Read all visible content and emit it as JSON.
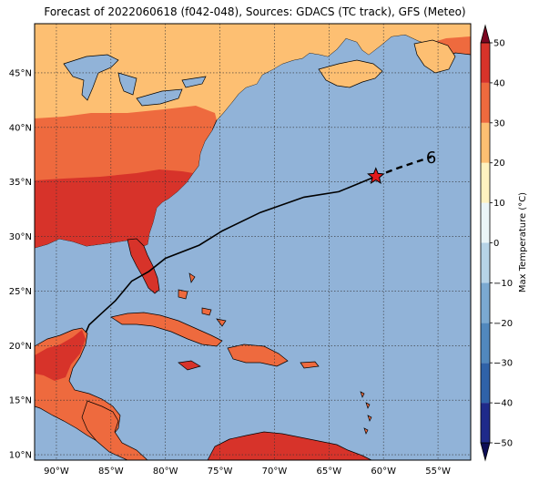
{
  "title": "Forecast of 2022060618 (f042-048), Sources: GDACS (TC track), GFS (Meteo)",
  "map": {
    "lon_range": [
      -92,
      -52
    ],
    "lat_range": [
      9.5,
      49.5
    ],
    "lon_ticks": [
      {
        "value": -90,
        "label": "90°W"
      },
      {
        "value": -85,
        "label": "85°W"
      },
      {
        "value": -80,
        "label": "80°W"
      },
      {
        "value": -75,
        "label": "75°W"
      },
      {
        "value": -70,
        "label": "70°W"
      },
      {
        "value": -65,
        "label": "65°W"
      },
      {
        "value": -60,
        "label": "60°W"
      },
      {
        "value": -55,
        "label": "55°W"
      }
    ],
    "lat_ticks": [
      {
        "value": 45,
        "label": "45°N"
      },
      {
        "value": 40,
        "label": "40°N"
      },
      {
        "value": 35,
        "label": "35°N"
      },
      {
        "value": 30,
        "label": "30°N"
      },
      {
        "value": 25,
        "label": "25°N"
      },
      {
        "value": 20,
        "label": "20°N"
      },
      {
        "value": 15,
        "label": "15°N"
      },
      {
        "value": 10,
        "label": "10°N"
      }
    ],
    "grid": true,
    "colors": {
      "ocean": "#91b3d8",
      "lt10": "#fef2c0",
      "10_20": "#fdbf72",
      "20_30": "#ee6a3e",
      "30_40": "#d7332a",
      "lakes": "#91b3d8"
    },
    "track_observed": [
      [
        -87.3,
        21.2
      ],
      [
        -87,
        21.9
      ],
      [
        -85.8,
        23.0
      ],
      [
        -84.6,
        24.1
      ],
      [
        -83.1,
        25.9
      ],
      [
        -81.5,
        26.8
      ],
      [
        -80.0,
        28.0
      ],
      [
        -76.9,
        29.2
      ],
      [
        -74.8,
        30.5
      ],
      [
        -71.3,
        32.2
      ],
      [
        -67.3,
        33.6
      ],
      [
        -64.1,
        34.1
      ],
      [
        -60.7,
        35.5
      ]
    ],
    "track_forecast": [
      [
        -60.7,
        35.5
      ],
      [
        -58.6,
        36.3
      ],
      [
        -55.6,
        37.3
      ]
    ],
    "storm_position": [
      -60.7,
      35.5
    ],
    "storm_forecast_symbol": "6"
  },
  "colorbar": {
    "label": "Max Temperature (°C)",
    "levels": [
      -50,
      -40,
      -30,
      -20,
      -10,
      0,
      10,
      20,
      30,
      40,
      50
    ],
    "tick_labels": [
      "−50",
      "−40",
      "−30",
      "−20",
      "−10",
      "0",
      "10",
      "20",
      "30",
      "40",
      "50"
    ],
    "colors": [
      "#1f2a8a",
      "#2f62a8",
      "#5188bd",
      "#7ba9d1",
      "#b6d3e7",
      "#eaf5f8",
      "#fef2c0",
      "#fdbf72",
      "#ee6a3e",
      "#d7332a"
    ],
    "low_color": "#0d0e56",
    "high_color": "#7c0621"
  }
}
